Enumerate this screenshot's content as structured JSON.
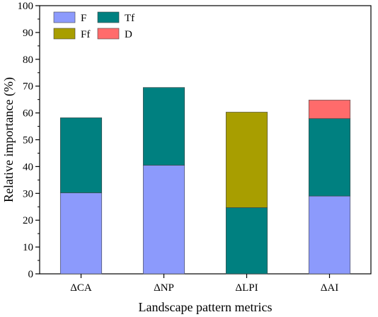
{
  "chart_data": {
    "type": "bar",
    "stacked": true,
    "xlabel": "Landscape pattern metrics",
    "ylabel": "Relative importance (%)",
    "ylim": [
      0,
      100
    ],
    "yticks": [
      0,
      10,
      20,
      30,
      40,
      50,
      60,
      70,
      80,
      90,
      100
    ],
    "categories": [
      "ΔCA",
      "ΔNP",
      "ΔLPI",
      "ΔAI"
    ],
    "series": [
      {
        "name": "F",
        "color": "#8c9afc",
        "values": [
          30.2,
          40.5,
          0,
          29.0
        ]
      },
      {
        "name": "Tf",
        "color": "#008080",
        "values": [
          28.0,
          29.0,
          24.7,
          28.9
        ]
      },
      {
        "name": "Ff",
        "color": "#a89e00",
        "values": [
          0,
          0,
          35.6,
          0
        ]
      },
      {
        "name": "D",
        "color": "#ff6b6b",
        "values": [
          0,
          0,
          0,
          6.9
        ]
      }
    ],
    "legend": {
      "placement": "top-left",
      "columns": 2
    },
    "grid": false
  }
}
